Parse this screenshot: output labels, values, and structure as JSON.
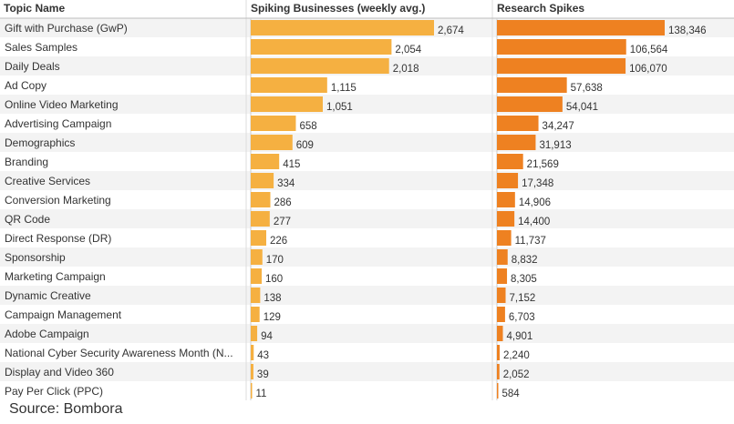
{
  "chart_data": {
    "type": "bar",
    "orientation": "horizontal",
    "columns": {
      "topic": "Topic Name",
      "series1": "Spiking Businesses (weekly avg.)",
      "series2": "Research Spikes"
    },
    "categories": [
      "Gift with Purchase (GwP)",
      "Sales Samples",
      "Daily Deals",
      "Ad Copy",
      "Online Video Marketing",
      "Advertising Campaign",
      "Demographics",
      "Branding",
      "Creative Services",
      "Conversion Marketing",
      "QR Code",
      "Direct Response (DR)",
      "Sponsorship",
      "Marketing Campaign",
      "Dynamic Creative",
      "Campaign Management",
      "Adobe Campaign",
      "National Cyber Security Awareness Month (N...",
      "Display and Video 360",
      "Pay Per Click (PPC)"
    ],
    "series": [
      {
        "name": "Spiking Businesses (weekly avg.)",
        "color": "#F5B041",
        "max": 2674,
        "values": [
          2674,
          2054,
          2018,
          1115,
          1051,
          658,
          609,
          415,
          334,
          286,
          277,
          226,
          170,
          160,
          138,
          129,
          94,
          43,
          39,
          11
        ],
        "labels": [
          "2,674",
          "2,054",
          "2,018",
          "1,115",
          "1,051",
          "658",
          "609",
          "415",
          "334",
          "286",
          "277",
          "226",
          "170",
          "160",
          "138",
          "129",
          "94",
          "43",
          "39",
          "11"
        ]
      },
      {
        "name": "Research Spikes",
        "color": "#EE8121",
        "max": 138346,
        "values": [
          138346,
          106564,
          106070,
          57638,
          54041,
          34247,
          31913,
          21569,
          17348,
          14906,
          14400,
          11737,
          8832,
          8305,
          7152,
          6703,
          4901,
          2240,
          2052,
          584
        ],
        "labels": [
          "138,346",
          "106,564",
          "106,070",
          "57,638",
          "54,041",
          "34,247",
          "31,913",
          "21,569",
          "17,348",
          "14,906",
          "14,400",
          "11,737",
          "8,832",
          "8,305",
          "7,152",
          "6,703",
          "4,901",
          "2,240",
          "2,052",
          "584"
        ]
      }
    ],
    "source": "Source: Bombora"
  }
}
